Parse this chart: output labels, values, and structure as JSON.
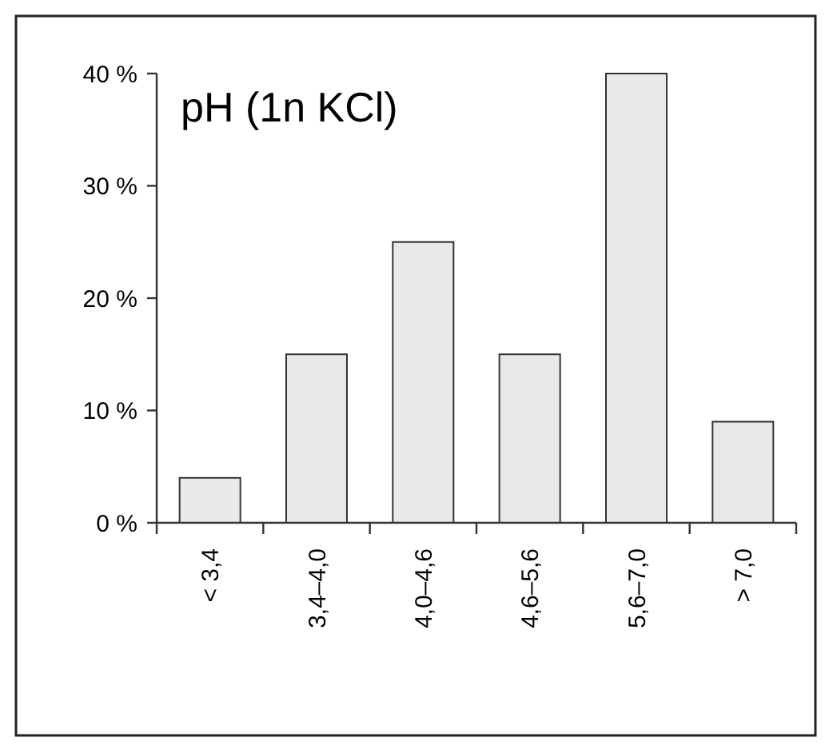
{
  "chart_data": {
    "type": "bar",
    "title": "pH (1n KCl)",
    "categories": [
      "< 3,4",
      "3,4–4,0",
      "4,0–4,6",
      "4,6–5,6",
      "5,6–7,0",
      "> 7,0"
    ],
    "values": [
      4,
      15,
      25,
      15,
      40,
      9
    ],
    "color": "#ebe9e7",
    "ylim": [
      0,
      40
    ],
    "yticks": [
      {
        "value": 0,
        "label": "0 %"
      },
      {
        "value": 10,
        "label": "10 %"
      },
      {
        "value": 20,
        "label": "20 %"
      },
      {
        "value": 30,
        "label": "30 %"
      },
      {
        "value": 40,
        "label": "40 %"
      }
    ],
    "grid": false
  }
}
